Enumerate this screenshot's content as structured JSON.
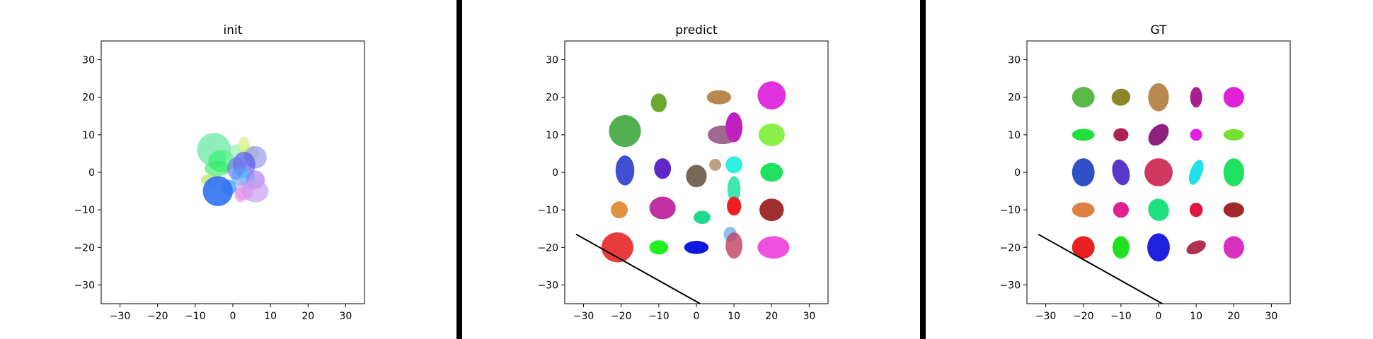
{
  "chart_data": [
    {
      "type": "scatter",
      "title": "init",
      "xlim": [
        -35,
        35
      ],
      "ylim": [
        -35,
        35
      ],
      "ticks": [
        -30,
        -20,
        -10,
        0,
        10,
        20,
        30
      ],
      "tick_labels": [
        "−30",
        "−20",
        "−10",
        "0",
        "10",
        "20",
        "30"
      ],
      "grid": false,
      "line": null,
      "ellipses": [
        {
          "x": -5,
          "y": 6,
          "w": 9,
          "h": 9,
          "angle": 0,
          "color": "#5ee8a0",
          "alpha": 0.7
        },
        {
          "x": -3,
          "y": 3,
          "w": 7,
          "h": 6,
          "angle": 0,
          "color": "#3cf07a",
          "alpha": 0.7
        },
        {
          "x": -4,
          "y": 1,
          "w": 7,
          "h": 4,
          "angle": 0,
          "color": "#2ee860",
          "alpha": 0.6
        },
        {
          "x": -6,
          "y": -2,
          "w": 5,
          "h": 3,
          "angle": 0,
          "color": "#a8e040",
          "alpha": 0.6
        },
        {
          "x": 1,
          "y": 4,
          "w": 6,
          "h": 7,
          "angle": 0,
          "color": "#8cf0a8",
          "alpha": 0.6
        },
        {
          "x": 3,
          "y": 7,
          "w": 3,
          "h": 5,
          "angle": 0,
          "color": "#d8f080",
          "alpha": 0.7
        },
        {
          "x": 5,
          "y": 5,
          "w": 4,
          "h": 4,
          "angle": 0,
          "color": "#c8e860",
          "alpha": 0.6
        },
        {
          "x": 6,
          "y": 4,
          "w": 6,
          "h": 6,
          "angle": 0,
          "color": "#9898f0",
          "alpha": 0.7
        },
        {
          "x": 3,
          "y": 2,
          "w": 6,
          "h": 7,
          "angle": 0,
          "color": "#4848f0",
          "alpha": 0.6
        },
        {
          "x": 1,
          "y": 1,
          "w": 5,
          "h": 6,
          "angle": 0,
          "color": "#7070f8",
          "alpha": 0.6
        },
        {
          "x": 2,
          "y": -1,
          "w": 5,
          "h": 5,
          "angle": 0,
          "color": "#50a0f0",
          "alpha": 0.6
        },
        {
          "x": 4,
          "y": -2,
          "w": 4,
          "h": 5,
          "angle": 0,
          "color": "#60c8f0",
          "alpha": 0.6
        },
        {
          "x": 6,
          "y": -2,
          "w": 5,
          "h": 5,
          "angle": 0,
          "color": "#a070f0",
          "alpha": 0.6
        },
        {
          "x": 6,
          "y": -5,
          "w": 7,
          "h": 6,
          "angle": 0,
          "color": "#c8a0f0",
          "alpha": 0.7
        },
        {
          "x": 3,
          "y": -5,
          "w": 5,
          "h": 5,
          "angle": 0,
          "color": "#d890f0",
          "alpha": 0.6
        },
        {
          "x": 2,
          "y": -6,
          "w": 3,
          "h": 4,
          "angle": 0,
          "color": "#e890e8",
          "alpha": 0.6
        },
        {
          "x": -1,
          "y": -4,
          "w": 4,
          "h": 4,
          "angle": 0,
          "color": "#3898f0",
          "alpha": 0.7
        },
        {
          "x": -4,
          "y": -5,
          "w": 8,
          "h": 8,
          "angle": 0,
          "color": "#2f72f0",
          "alpha": 0.9
        }
      ]
    },
    {
      "type": "scatter",
      "title": "predict",
      "xlim": [
        -35,
        35
      ],
      "ylim": [
        -35,
        35
      ],
      "ticks": [
        -30,
        -20,
        -10,
        0,
        10,
        20,
        30
      ],
      "tick_labels": [
        "−30",
        "−20",
        "−10",
        "0",
        "10",
        "20",
        "30"
      ],
      "grid": false,
      "line": [
        [
          -32,
          -16.5
        ],
        [
          1,
          -35
        ]
      ],
      "ellipses": [
        {
          "x": -19,
          "y": 11,
          "w": 8.5,
          "h": 8.5,
          "angle": 0,
          "color": "#52b050",
          "alpha": 1
        },
        {
          "x": -10,
          "y": 18.5,
          "w": 4.2,
          "h": 5,
          "angle": 0,
          "color": "#6aaa30",
          "alpha": 1
        },
        {
          "x": 6,
          "y": 20,
          "w": 6.5,
          "h": 3.8,
          "angle": 0,
          "color": "#b88850",
          "alpha": 1
        },
        {
          "x": 20,
          "y": 20.5,
          "w": 7.5,
          "h": 7.5,
          "angle": 0,
          "color": "#e030e0",
          "alpha": 1
        },
        {
          "x": 7,
          "y": 10,
          "w": 8,
          "h": 5,
          "angle": 0,
          "color": "#a06890",
          "alpha": 1
        },
        {
          "x": 10,
          "y": 12,
          "w": 4.5,
          "h": 8,
          "angle": 0,
          "color": "#c020c0",
          "alpha": 1
        },
        {
          "x": 20,
          "y": 10,
          "w": 7,
          "h": 6,
          "angle": 0,
          "color": "#88f048",
          "alpha": 1
        },
        {
          "x": -19,
          "y": 0.5,
          "w": 5,
          "h": 8,
          "angle": 0,
          "color": "#4050d0",
          "alpha": 1
        },
        {
          "x": -9,
          "y": 1,
          "w": 4.5,
          "h": 5.5,
          "angle": 0,
          "color": "#6028c8",
          "alpha": 1
        },
        {
          "x": 0,
          "y": -1,
          "w": 5.5,
          "h": 6,
          "angle": 0,
          "color": "#786858",
          "alpha": 1
        },
        {
          "x": 5,
          "y": 2,
          "w": 3.2,
          "h": 3.2,
          "angle": 0,
          "color": "#c0a080",
          "alpha": 1
        },
        {
          "x": 10,
          "y": 2,
          "w": 4.5,
          "h": 4.5,
          "angle": 0,
          "color": "#30f0e0",
          "alpha": 1
        },
        {
          "x": 10,
          "y": -4.5,
          "w": 3.5,
          "h": 7,
          "angle": 0,
          "color": "#40e8b0",
          "alpha": 1
        },
        {
          "x": 20,
          "y": 0,
          "w": 6,
          "h": 5,
          "angle": 0,
          "color": "#20e060",
          "alpha": 1
        },
        {
          "x": -20.5,
          "y": -10,
          "w": 4.5,
          "h": 4.5,
          "angle": 0,
          "color": "#e09040",
          "alpha": 1
        },
        {
          "x": -9,
          "y": -9.5,
          "w": 7,
          "h": 6,
          "angle": 0,
          "color": "#c030a0",
          "alpha": 1
        },
        {
          "x": 1.5,
          "y": -12,
          "w": 4.5,
          "h": 3.5,
          "angle": 0,
          "color": "#20d890",
          "alpha": 1
        },
        {
          "x": 10,
          "y": -9,
          "w": 3.8,
          "h": 5,
          "angle": 0,
          "color": "#f02020",
          "alpha": 1
        },
        {
          "x": 20,
          "y": -10,
          "w": 6.5,
          "h": 6,
          "angle": 0,
          "color": "#a03030",
          "alpha": 1
        },
        {
          "x": -21,
          "y": -20,
          "w": 8.5,
          "h": 8,
          "angle": 0,
          "color": "#e83030",
          "alpha": 0.95
        },
        {
          "x": -10,
          "y": -20,
          "w": 5,
          "h": 3.8,
          "angle": 0,
          "color": "#20f020",
          "alpha": 1
        },
        {
          "x": 0,
          "y": -20,
          "w": 6.5,
          "h": 3.5,
          "angle": 0,
          "color": "#1018e0",
          "alpha": 1
        },
        {
          "x": 9,
          "y": -16.5,
          "w": 3.5,
          "h": 4,
          "angle": 0,
          "color": "#90c0f0",
          "alpha": 1
        },
        {
          "x": 10,
          "y": -19.5,
          "w": 4.5,
          "h": 7,
          "angle": 0,
          "color": "#c04060",
          "alpha": 0.8
        },
        {
          "x": 20.5,
          "y": -20,
          "w": 8.5,
          "h": 6,
          "angle": 0,
          "color": "#f050e0",
          "alpha": 1
        }
      ]
    },
    {
      "type": "scatter",
      "title": "GT",
      "xlim": [
        -35,
        35
      ],
      "ylim": [
        -35,
        35
      ],
      "ticks": [
        -30,
        -20,
        -10,
        0,
        10,
        20,
        30
      ],
      "tick_labels": [
        "−30",
        "−20",
        "−10",
        "0",
        "10",
        "20",
        "30"
      ],
      "grid": false,
      "line": [
        [
          -32,
          -16.5
        ],
        [
          1,
          -35
        ]
      ],
      "ellipses": [
        {
          "x": -20,
          "y": 20,
          "w": 6,
          "h": 5.5,
          "angle": 0,
          "color": "#58b848",
          "alpha": 1
        },
        {
          "x": -10,
          "y": 20,
          "w": 5,
          "h": 4.5,
          "angle": -15,
          "color": "#888828",
          "alpha": 1
        },
        {
          "x": 0,
          "y": 20,
          "w": 5.5,
          "h": 7.5,
          "angle": 0,
          "color": "#b88850",
          "alpha": 1
        },
        {
          "x": 10,
          "y": 20,
          "w": 3.2,
          "h": 5.5,
          "angle": 0,
          "color": "#a82090",
          "alpha": 1
        },
        {
          "x": 20,
          "y": 20,
          "w": 5.5,
          "h": 5.5,
          "angle": 0,
          "color": "#e020d8",
          "alpha": 1
        },
        {
          "x": -20,
          "y": 10,
          "w": 6,
          "h": 3.2,
          "angle": 0,
          "color": "#20e040",
          "alpha": 1
        },
        {
          "x": -10,
          "y": 10,
          "w": 4,
          "h": 3.5,
          "angle": 0,
          "color": "#b02050",
          "alpha": 1
        },
        {
          "x": 0,
          "y": 10,
          "w": 4.5,
          "h": 6.5,
          "angle": 40,
          "color": "#902080",
          "alpha": 1
        },
        {
          "x": 10,
          "y": 10,
          "w": 3.2,
          "h": 3.2,
          "angle": 0,
          "color": "#e020e0",
          "alpha": 1
        },
        {
          "x": 20,
          "y": 10,
          "w": 5.5,
          "h": 3,
          "angle": 0,
          "color": "#78e030",
          "alpha": 1
        },
        {
          "x": -20,
          "y": 0,
          "w": 6,
          "h": 7.5,
          "angle": 0,
          "color": "#3050c8",
          "alpha": 1
        },
        {
          "x": -10,
          "y": 0,
          "w": 4.5,
          "h": 7,
          "angle": -15,
          "color": "#5838c8",
          "alpha": 1
        },
        {
          "x": 0,
          "y": 0,
          "w": 7.5,
          "h": 7.5,
          "angle": 0,
          "color": "#d03860",
          "alpha": 1
        },
        {
          "x": 10,
          "y": 0,
          "w": 3.2,
          "h": 7,
          "angle": 20,
          "color": "#20e0e8",
          "alpha": 1
        },
        {
          "x": 20,
          "y": 0,
          "w": 5.5,
          "h": 7.5,
          "angle": 0,
          "color": "#20e060",
          "alpha": 1
        },
        {
          "x": -20,
          "y": -10,
          "w": 6,
          "h": 4,
          "angle": 0,
          "color": "#e08040",
          "alpha": 1
        },
        {
          "x": -10,
          "y": -10,
          "w": 4.2,
          "h": 4.2,
          "angle": 0,
          "color": "#e02090",
          "alpha": 1
        },
        {
          "x": 0,
          "y": -10,
          "w": 5.5,
          "h": 6,
          "angle": -20,
          "color": "#20e080",
          "alpha": 1
        },
        {
          "x": 10,
          "y": -10,
          "w": 3.5,
          "h": 3.8,
          "angle": 0,
          "color": "#e01840",
          "alpha": 1
        },
        {
          "x": 20,
          "y": -10,
          "w": 5.5,
          "h": 4,
          "angle": 0,
          "color": "#a02828",
          "alpha": 1
        },
        {
          "x": -20,
          "y": -20,
          "w": 6,
          "h": 6,
          "angle": 0,
          "color": "#e82020",
          "alpha": 1
        },
        {
          "x": -10,
          "y": -20,
          "w": 4.5,
          "h": 6,
          "angle": 0,
          "color": "#20e020",
          "alpha": 1
        },
        {
          "x": 0,
          "y": -20,
          "w": 6,
          "h": 7.5,
          "angle": 0,
          "color": "#2020e0",
          "alpha": 1
        },
        {
          "x": 10,
          "y": -20,
          "w": 5.5,
          "h": 3.2,
          "angle": -25,
          "color": "#b03050",
          "alpha": 1
        },
        {
          "x": 20,
          "y": -20,
          "w": 5.5,
          "h": 6,
          "angle": 0,
          "color": "#d830c0",
          "alpha": 1
        }
      ]
    }
  ]
}
